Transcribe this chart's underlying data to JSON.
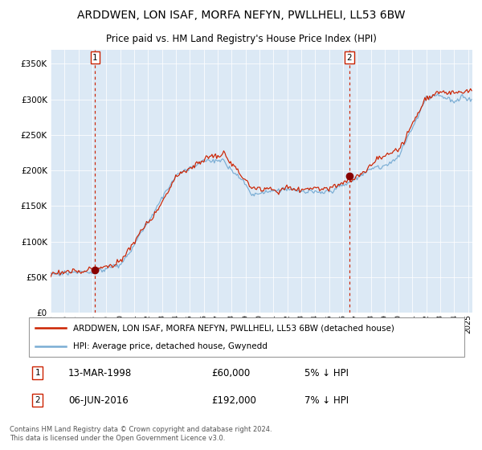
{
  "title": "ARDDWEN, LON ISAF, MORFA NEFYN, PWLLHELI, LL53 6BW",
  "subtitle": "Price paid vs. HM Land Registry's House Price Index (HPI)",
  "bg_color": "#dce9f5",
  "legend_line1": "ARDDWEN, LON ISAF, MORFA NEFYN, PWLLHELI, LL53 6BW (detached house)",
  "legend_line2": "HPI: Average price, detached house, Gwynedd",
  "sale1_date": "13-MAR-1998",
  "sale1_price": 60000,
  "sale1_label": "5% ↓ HPI",
  "sale2_date": "06-JUN-2016",
  "sale2_price": 192000,
  "sale2_label": "7% ↓ HPI",
  "footer": "Contains HM Land Registry data © Crown copyright and database right 2024.\nThis data is licensed under the Open Government Licence v3.0.",
  "hpi_color": "#7aadd4",
  "price_color": "#cc2200",
  "sale_dot_color": "#880000",
  "vline_color": "#cc2200",
  "ylim": [
    0,
    370000
  ],
  "yticks": [
    0,
    50000,
    100000,
    150000,
    200000,
    250000,
    300000,
    350000
  ],
  "sale1_x": 1998.2,
  "sale2_x": 2016.45,
  "xmin": 1995,
  "xmax": 2025.3
}
